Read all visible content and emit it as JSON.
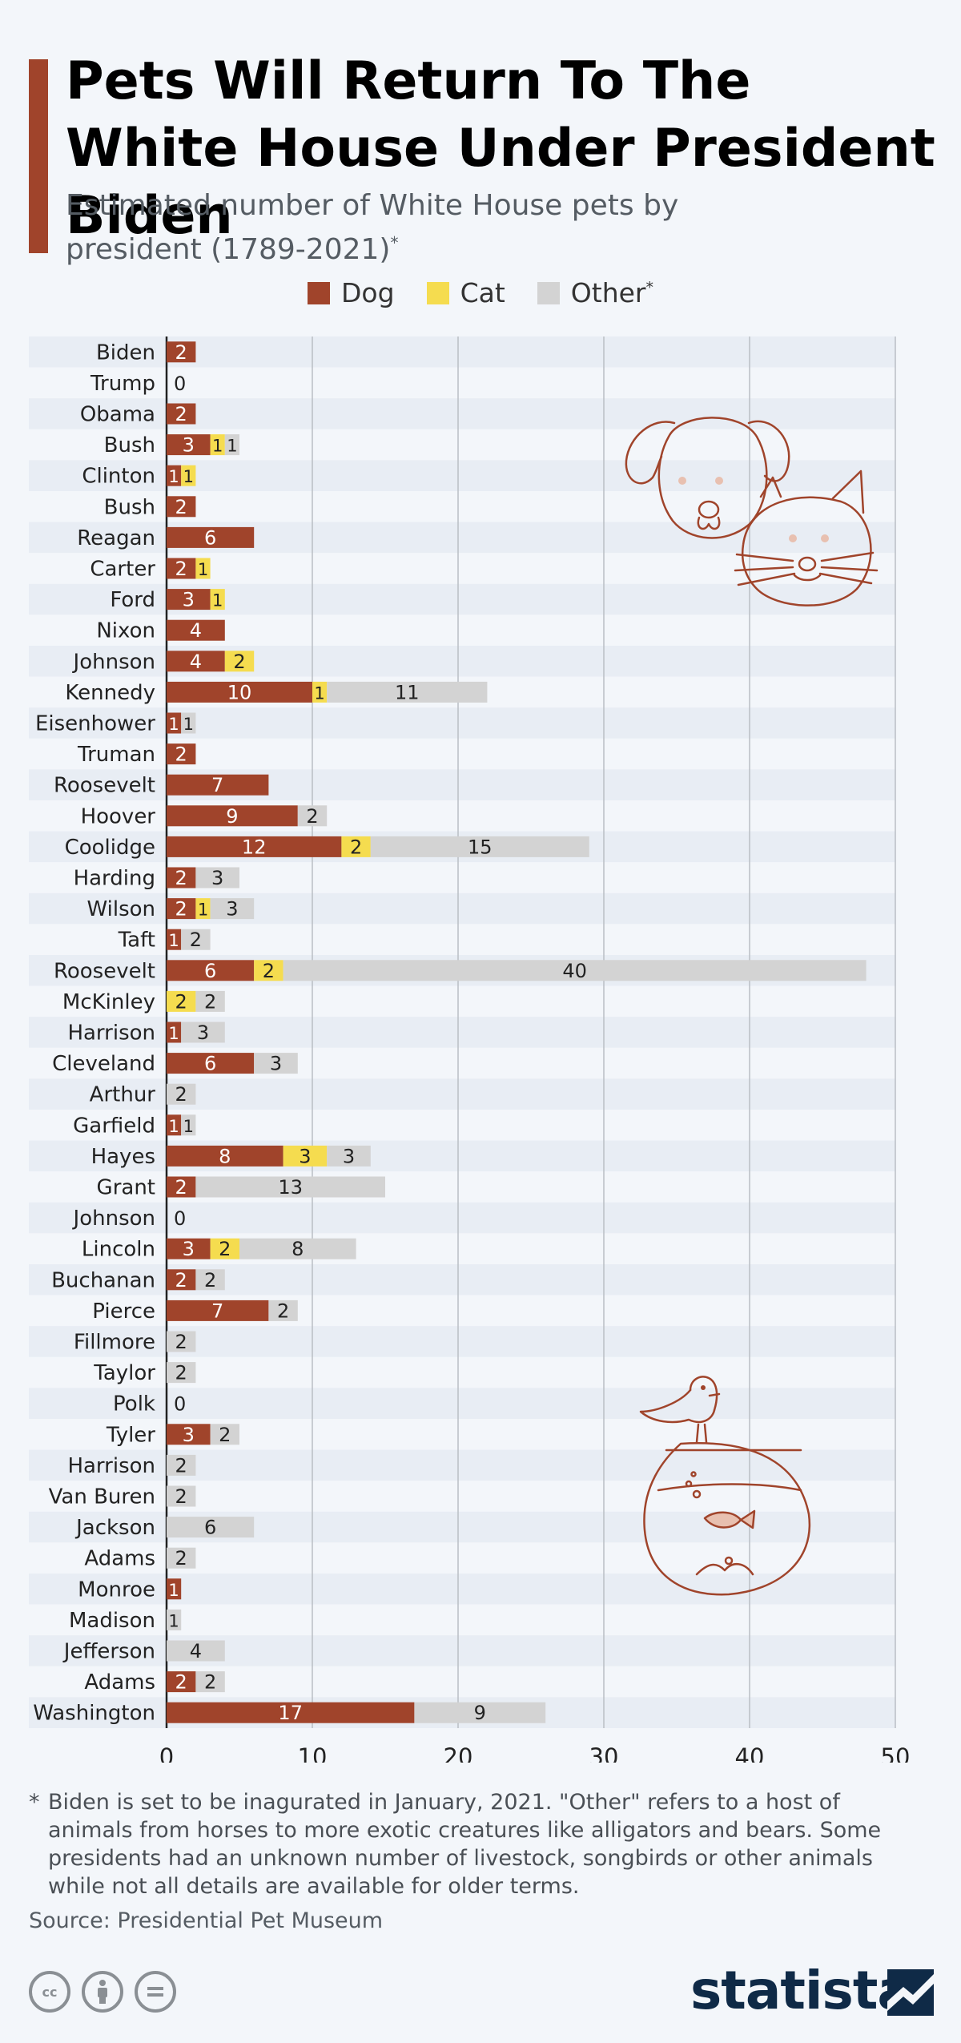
{
  "title": "Pets Will Return To The White House Under President Biden",
  "subtitle": "Estimated number of White House pets by president (1789-2021)",
  "subtitle_mark": "*",
  "legend": [
    {
      "label": "Dog",
      "mark": "",
      "color": "#a0442b"
    },
    {
      "label": "Cat",
      "mark": "",
      "color": "#f5dc4f"
    },
    {
      "label": "Other",
      "mark": "*",
      "color": "#d3d3d3"
    }
  ],
  "footnote_star": "*",
  "footnote": "Biden is set to be inagurated in January, 2021. \"Other\" refers to a host of animals from horses to more exotic creatures like alligators and bears. Some presidents had an unknown number of livestock, songbirds or other animals while not all details are available for older terms.",
  "source": "Source: Presidential Pet Museum",
  "brand": "statista",
  "cc_icons": [
    "cc-icon",
    "by-icon",
    "nd-icon"
  ],
  "chart_data": {
    "type": "bar",
    "orientation": "horizontal",
    "stacked": true,
    "categories": [
      "Biden",
      "Trump",
      "Obama",
      "Bush",
      "Clinton",
      "Bush",
      "Reagan",
      "Carter",
      "Ford",
      "Nixon",
      "Johnson",
      "Kennedy",
      "Eisenhower",
      "Truman",
      "Roosevelt",
      "Hoover",
      "Coolidge",
      "Harding",
      "Wilson",
      "Taft",
      "Roosevelt",
      "McKinley",
      "Harrison",
      "Cleveland",
      "Arthur",
      "Garfield",
      "Hayes",
      "Grant",
      "Johnson",
      "Lincoln",
      "Buchanan",
      "Pierce",
      "Fillmore",
      "Taylor",
      "Polk",
      "Tyler",
      "Harrison",
      "Van Buren",
      "Jackson",
      "Adams",
      "Monroe",
      "Madison",
      "Jefferson",
      "Adams",
      "Washington"
    ],
    "series": [
      {
        "name": "Dog",
        "color": "#a0442b",
        "values": [
          2,
          0,
          2,
          3,
          1,
          2,
          6,
          2,
          3,
          4,
          4,
          10,
          1,
          2,
          7,
          9,
          12,
          2,
          2,
          1,
          6,
          0,
          1,
          6,
          0,
          1,
          8,
          2,
          0,
          3,
          2,
          7,
          0,
          0,
          0,
          3,
          0,
          0,
          0,
          0,
          1,
          0,
          0,
          2,
          17
        ]
      },
      {
        "name": "Cat",
        "color": "#f5dc4f",
        "values": [
          0,
          0,
          0,
          1,
          1,
          0,
          0,
          1,
          1,
          0,
          2,
          1,
          0,
          0,
          0,
          0,
          2,
          0,
          1,
          0,
          2,
          2,
          0,
          0,
          0,
          0,
          3,
          0,
          0,
          2,
          0,
          0,
          0,
          0,
          0,
          0,
          0,
          0,
          0,
          0,
          0,
          0,
          0,
          0,
          0
        ]
      },
      {
        "name": "Other",
        "color": "#d3d3d3",
        "values": [
          0,
          0,
          0,
          1,
          0,
          0,
          0,
          0,
          0,
          0,
          0,
          11,
          1,
          0,
          0,
          2,
          15,
          3,
          3,
          2,
          40,
          2,
          3,
          3,
          2,
          1,
          3,
          13,
          0,
          8,
          2,
          2,
          2,
          2,
          0,
          2,
          2,
          2,
          6,
          2,
          0,
          1,
          4,
          2,
          9
        ]
      }
    ],
    "xlim": [
      0,
      50
    ],
    "xticks": [
      0,
      10,
      20,
      30,
      40,
      50
    ],
    "grid": true,
    "legend_position": "top-center",
    "zero_labels": [
      "0",
      "0",
      "0"
    ]
  }
}
